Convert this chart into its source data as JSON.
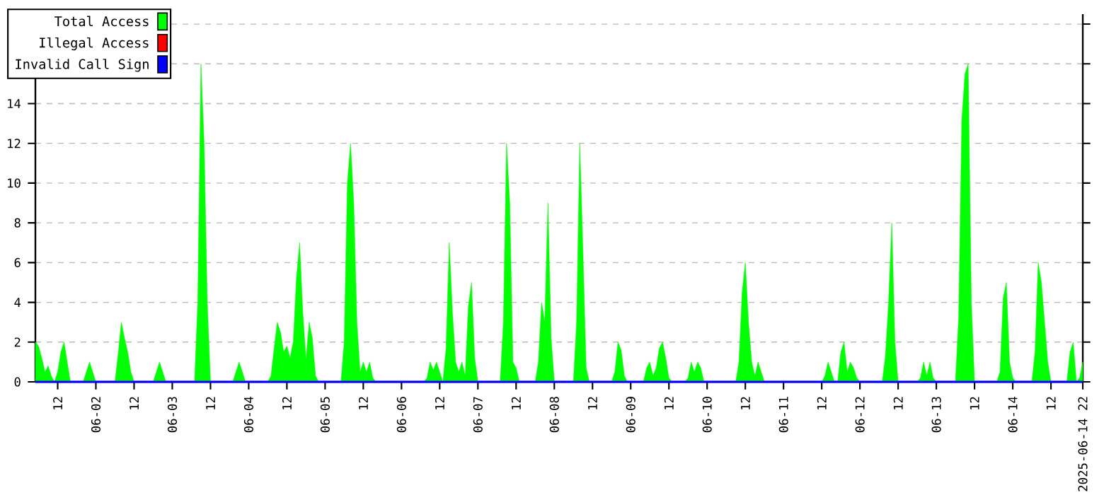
{
  "chart_data": {
    "type": "area",
    "xlim": [
      "2025-06-01T05:00",
      "2025-06-14T22:00"
    ],
    "ylim": [
      0,
      18.5
    ],
    "yticks": [
      0,
      2,
      4,
      6,
      8,
      10,
      12,
      14,
      {
        "value": 16,
        "label": null
      },
      {
        "value": 18,
        "label": null
      }
    ],
    "xticks": [
      {
        "value": "2025-06-01T12:00",
        "label": "12"
      },
      {
        "value": "2025-06-02T00:00",
        "label": "06-02"
      },
      {
        "value": "2025-06-02T12:00",
        "label": "12"
      },
      {
        "value": "2025-06-03T00:00",
        "label": "06-03"
      },
      {
        "value": "2025-06-03T12:00",
        "label": "12"
      },
      {
        "value": "2025-06-04T00:00",
        "label": "06-04"
      },
      {
        "value": "2025-06-04T12:00",
        "label": "12"
      },
      {
        "value": "2025-06-05T00:00",
        "label": "06-05"
      },
      {
        "value": "2025-06-05T12:00",
        "label": "12"
      },
      {
        "value": "2025-06-06T00:00",
        "label": "06-06"
      },
      {
        "value": "2025-06-06T12:00",
        "label": "12"
      },
      {
        "value": "2025-06-07T00:00",
        "label": "06-07"
      },
      {
        "value": "2025-06-07T12:00",
        "label": "12"
      },
      {
        "value": "2025-06-08T00:00",
        "label": "06-08"
      },
      {
        "value": "2025-06-08T12:00",
        "label": "12"
      },
      {
        "value": "2025-06-09T00:00",
        "label": "06-09"
      },
      {
        "value": "2025-06-09T12:00",
        "label": "12"
      },
      {
        "value": "2025-06-10T00:00",
        "label": "06-10"
      },
      {
        "value": "2025-06-10T12:00",
        "label": "12"
      },
      {
        "value": "2025-06-11T00:00",
        "label": "06-11"
      },
      {
        "value": "2025-06-11T12:00",
        "label": "12"
      },
      {
        "value": "2025-06-12T00:00",
        "label": "06-12"
      },
      {
        "value": "2025-06-12T12:00",
        "label": "12"
      },
      {
        "value": "2025-06-13T00:00",
        "label": "06-13"
      },
      {
        "value": "2025-06-13T12:00",
        "label": "12"
      },
      {
        "value": "2025-06-14T00:00",
        "label": "06-14"
      },
      {
        "value": "2025-06-14T12:00",
        "label": "12"
      },
      {
        "value": "2025-06-14T22:00",
        "label": "2025-06-14 22"
      }
    ],
    "grid": "y",
    "legend": "top left",
    "series": [
      {
        "name": "Total Access",
        "color": "#00ff00",
        "x": [
          "2025-06-01T05:00",
          "2025-06-01T06:00",
          "2025-06-01T07:00",
          "2025-06-01T08:00",
          "2025-06-01T09:00",
          "2025-06-01T10:00",
          "2025-06-01T11:00",
          "2025-06-01T12:00",
          "2025-06-01T13:00",
          "2025-06-01T14:00",
          "2025-06-01T15:00",
          "2025-06-01T16:00",
          "2025-06-01T20:00",
          "2025-06-01T21:00",
          "2025-06-01T22:00",
          "2025-06-01T23:00",
          "2025-06-02T00:00",
          "2025-06-02T06:00",
          "2025-06-02T07:00",
          "2025-06-02T08:00",
          "2025-06-02T09:00",
          "2025-06-02T10:00",
          "2025-06-02T11:00",
          "2025-06-02T12:00",
          "2025-06-02T18:00",
          "2025-06-02T19:00",
          "2025-06-02T20:00",
          "2025-06-02T21:00",
          "2025-06-02T22:00",
          "2025-06-03T07:00",
          "2025-06-03T08:00",
          "2025-06-03T09:00",
          "2025-06-03T10:00",
          "2025-06-03T11:00",
          "2025-06-03T12:00",
          "2025-06-03T19:00",
          "2025-06-03T20:00",
          "2025-06-03T21:00",
          "2025-06-03T22:00",
          "2025-06-03T23:00",
          "2025-06-04T06:00",
          "2025-06-04T07:00",
          "2025-06-04T08:00",
          "2025-06-04T09:00",
          "2025-06-04T10:00",
          "2025-06-04T11:00",
          "2025-06-04T12:00",
          "2025-06-04T13:00",
          "2025-06-04T14:00",
          "2025-06-04T15:00",
          "2025-06-04T16:00",
          "2025-06-04T17:00",
          "2025-06-04T18:00",
          "2025-06-04T19:00",
          "2025-06-04T20:00",
          "2025-06-04T21:00",
          "2025-06-04T22:00",
          "2025-06-05T05:00",
          "2025-06-05T06:00",
          "2025-06-05T07:00",
          "2025-06-05T08:00",
          "2025-06-05T09:00",
          "2025-06-05T10:00",
          "2025-06-05T11:00",
          "2025-06-05T12:00",
          "2025-06-05T13:00",
          "2025-06-05T14:00",
          "2025-06-05T15:00",
          "2025-06-05T16:00",
          "2025-06-06T07:00",
          "2025-06-06T08:00",
          "2025-06-06T09:00",
          "2025-06-06T10:00",
          "2025-06-06T11:00",
          "2025-06-06T12:00",
          "2025-06-06T13:00",
          "2025-06-06T14:00",
          "2025-06-06T15:00",
          "2025-06-06T16:00",
          "2025-06-06T17:00",
          "2025-06-06T18:00",
          "2025-06-06T19:00",
          "2025-06-06T20:00",
          "2025-06-06T21:00",
          "2025-06-06T22:00",
          "2025-06-06T23:00",
          "2025-06-07T00:00",
          "2025-06-07T07:00",
          "2025-06-07T08:00",
          "2025-06-07T09:00",
          "2025-06-07T10:00",
          "2025-06-07T11:00",
          "2025-06-07T12:00",
          "2025-06-07T13:00",
          "2025-06-07T18:00",
          "2025-06-07T19:00",
          "2025-06-07T20:00",
          "2025-06-07T21:00",
          "2025-06-07T22:00",
          "2025-06-07T23:00",
          "2025-06-08T00:00",
          "2025-06-08T06:00",
          "2025-06-08T07:00",
          "2025-06-08T08:00",
          "2025-06-08T09:00",
          "2025-06-08T10:00",
          "2025-06-08T11:00",
          "2025-06-08T18:00",
          "2025-06-08T19:00",
          "2025-06-08T20:00",
          "2025-06-08T21:00",
          "2025-06-08T22:00",
          "2025-06-08T23:00",
          "2025-06-09T04:00",
          "2025-06-09T05:00",
          "2025-06-09T06:00",
          "2025-06-09T07:00",
          "2025-06-09T08:00",
          "2025-06-09T09:00",
          "2025-06-09T10:00",
          "2025-06-09T11:00",
          "2025-06-09T12:00",
          "2025-06-09T13:00",
          "2025-06-09T17:00",
          "2025-06-09T18:00",
          "2025-06-09T19:00",
          "2025-06-09T20:00",
          "2025-06-09T21:00",
          "2025-06-09T22:00",
          "2025-06-09T23:00",
          "2025-06-10T09:00",
          "2025-06-10T10:00",
          "2025-06-10T11:00",
          "2025-06-10T12:00",
          "2025-06-10T13:00",
          "2025-06-10T14:00",
          "2025-06-10T15:00",
          "2025-06-10T16:00",
          "2025-06-10T17:00",
          "2025-06-10T18:00",
          "2025-06-11T12:00",
          "2025-06-11T13:00",
          "2025-06-11T14:00",
          "2025-06-11T15:00",
          "2025-06-11T16:00",
          "2025-06-11T17:00",
          "2025-06-11T18:00",
          "2025-06-11T19:00",
          "2025-06-11T20:00",
          "2025-06-11T21:00",
          "2025-06-11T22:00",
          "2025-06-11T23:00",
          "2025-06-12T00:00",
          "2025-06-12T07:00",
          "2025-06-12T08:00",
          "2025-06-12T09:00",
          "2025-06-12T10:00",
          "2025-06-12T11:00",
          "2025-06-12T12:00",
          "2025-06-12T18:00",
          "2025-06-12T19:00",
          "2025-06-12T20:00",
          "2025-06-12T21:00",
          "2025-06-12T22:00",
          "2025-06-12T23:00",
          "2025-06-13T00:00",
          "2025-06-13T06:00",
          "2025-06-13T07:00",
          "2025-06-13T08:00",
          "2025-06-13T09:00",
          "2025-06-13T10:00",
          "2025-06-13T11:00",
          "2025-06-13T12:00",
          "2025-06-13T19:00",
          "2025-06-13T20:00",
          "2025-06-13T21:00",
          "2025-06-13T22:00",
          "2025-06-13T23:00",
          "2025-06-14T00:00",
          "2025-06-14T01:00",
          "2025-06-14T06:00",
          "2025-06-14T07:00",
          "2025-06-14T08:00",
          "2025-06-14T09:00",
          "2025-06-14T10:00",
          "2025-06-14T11:00",
          "2025-06-14T12:00",
          "2025-06-14T17:00",
          "2025-06-14T18:00",
          "2025-06-14T19:00",
          "2025-06-14T20:00",
          "2025-06-14T21:00",
          "2025-06-14T22:00"
        ],
        "values": [
          2,
          1.8,
          1.2,
          0.5,
          0.8,
          0.3,
          0,
          0.5,
          1.5,
          2,
          1,
          0,
          0,
          0.5,
          1,
          0.5,
          0,
          0,
          1.4,
          3,
          2.2,
          1.5,
          0.5,
          0,
          0,
          0.5,
          1,
          0.5,
          0,
          0,
          4,
          16,
          12,
          4,
          0,
          0,
          0.5,
          1,
          0.5,
          0,
          0,
          0.3,
          1.7,
          3,
          2.5,
          1.5,
          1.8,
          1.2,
          2,
          5.2,
          7,
          3.5,
          1.1,
          3,
          2.2,
          0.3,
          0,
          0,
          2,
          10,
          12,
          9,
          3,
          0.5,
          1,
          0.5,
          1,
          0.2,
          0,
          0,
          0.2,
          1,
          0.6,
          1,
          0.5,
          0,
          1.7,
          7,
          3.5,
          1,
          0.5,
          1,
          0.3,
          3.8,
          5,
          1.2,
          0,
          0,
          3,
          12,
          9,
          1,
          0.7,
          0,
          0,
          1,
          4,
          3,
          9,
          2.2,
          0,
          0,
          3,
          12,
          6.5,
          0.7,
          0,
          0,
          0.5,
          2,
          1.6,
          0.3,
          0,
          0,
          0.7,
          1,
          0.3,
          0.7,
          1.7,
          2,
          1.2,
          0.2,
          0,
          0,
          0.2,
          1,
          0.5,
          1,
          0.7,
          0,
          0,
          1,
          4.5,
          6,
          3,
          1,
          0.3,
          1,
          0.5,
          0,
          0,
          0.3,
          1,
          0.5,
          0,
          0,
          1.5,
          2,
          0.5,
          1,
          0.7,
          0.2,
          0,
          0,
          1.3,
          4,
          8,
          2,
          0,
          0,
          0.2,
          1,
          0.3,
          1,
          0.2,
          0,
          0,
          3.2,
          13.2,
          15.5,
          16,
          4,
          0,
          0,
          0.5,
          4.2,
          5,
          1,
          0.2,
          0,
          0,
          1.5,
          6,
          5,
          3,
          1,
          0,
          0,
          1.5,
          2,
          0,
          0.2,
          1
        ]
      },
      {
        "name": "Illegal Access",
        "color": "#ff0000",
        "type": "line"
      },
      {
        "name": "Invalid Call Sign",
        "color": "#0000ff",
        "type": "line",
        "x": [
          "2025-06-01T05:00",
          "2025-06-14T22:00"
        ],
        "values": [
          0,
          0
        ]
      }
    ]
  }
}
